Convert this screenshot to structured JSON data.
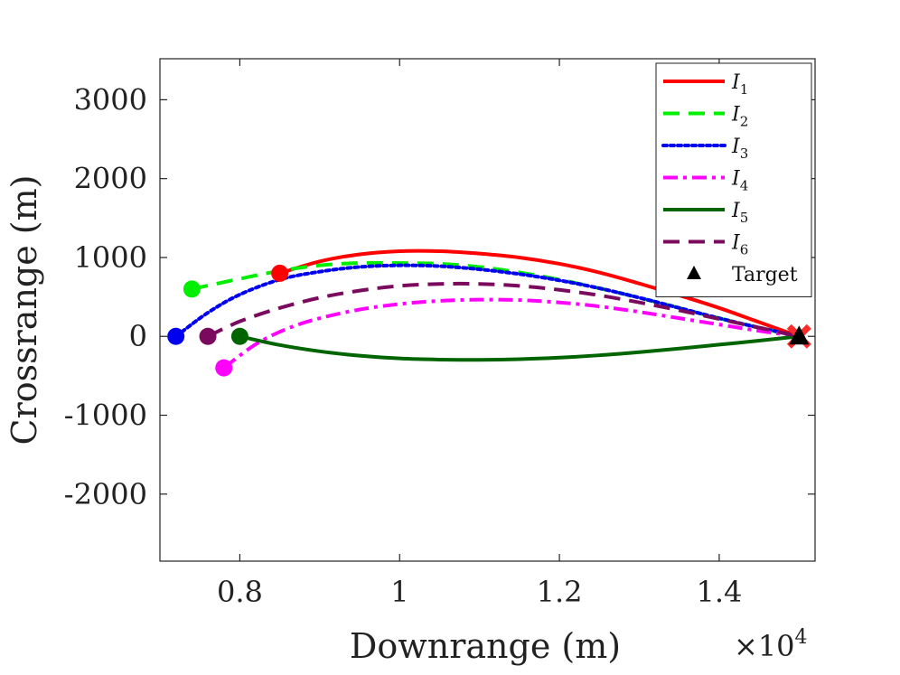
{
  "chart_data": {
    "type": "line",
    "title": "",
    "xlabel": "Downrange (m)",
    "ylabel": "Crossrange (m)",
    "x_exponent_label": "×10",
    "x_exponent_power": "4",
    "xlim": [
      0.7,
      1.52
    ],
    "ylim": [
      -2850,
      3520
    ],
    "x_scale_factor": 10000,
    "xticks": [
      0.8,
      1.0,
      1.2,
      1.4
    ],
    "xtick_labels": [
      "0.8",
      "1",
      "1.2",
      "1.4"
    ],
    "yticks": [
      3000,
      2000,
      1000,
      0,
      -1000,
      -2000
    ],
    "ytick_labels": [
      "3000",
      "2000",
      "1000",
      "0",
      "-1000",
      "-2000"
    ],
    "grid": false,
    "legend_position": "top-right",
    "series": [
      {
        "name": "I",
        "subscript": "1",
        "color": "#ff0000",
        "dash": "solid",
        "x": [
          8500,
          9000,
          9500,
          10000,
          10500,
          11000,
          11500,
          12000,
          12500,
          13000,
          13500,
          14000,
          14500,
          15000
        ],
        "y": [
          800,
          950,
          1040,
          1080,
          1080,
          1050,
          1000,
          920,
          810,
          670,
          520,
          360,
          180,
          0
        ]
      },
      {
        "name": "I",
        "subscript": "2",
        "color": "#00ee00",
        "dash": "dashed",
        "x": [
          7400,
          8000,
          8500,
          9000,
          9500,
          10000,
          10500,
          11000,
          11500,
          12000,
          12500,
          13000,
          13500,
          14000,
          14500,
          15000
        ],
        "y": [
          600,
          730,
          830,
          900,
          930,
          930,
          920,
          880,
          810,
          720,
          610,
          490,
          360,
          230,
          110,
          0
        ]
      },
      {
        "name": "I",
        "subscript": "3",
        "color": "#0000ee",
        "dash": "dotted",
        "x": [
          7200,
          7600,
          8000,
          8500,
          9000,
          9500,
          10000,
          10500,
          11000,
          11500,
          12000,
          12500,
          13000,
          13500,
          14000,
          14500,
          15000
        ],
        "y": [
          0,
          300,
          530,
          720,
          820,
          880,
          900,
          890,
          850,
          790,
          710,
          610,
          490,
          360,
          230,
          110,
          0
        ]
      },
      {
        "name": "I",
        "subscript": "4",
        "color": "#ff00ff",
        "dash": "dashdot",
        "x": [
          7800,
          8200,
          8600,
          9000,
          9500,
          10000,
          10500,
          11000,
          11500,
          12000,
          12500,
          13000,
          13500,
          14000,
          14500,
          15000
        ],
        "y": [
          -400,
          -100,
          100,
          230,
          340,
          410,
          450,
          465,
          460,
          430,
          380,
          310,
          230,
          150,
          70,
          0
        ]
      },
      {
        "name": "I",
        "subscript": "5",
        "color": "#006400",
        "dash": "solid",
        "x": [
          8000,
          8500,
          9000,
          9500,
          10000,
          10500,
          11000,
          11500,
          12000,
          12500,
          13000,
          13500,
          14000,
          14500,
          15000
        ],
        "y": [
          0,
          -110,
          -190,
          -245,
          -280,
          -295,
          -298,
          -290,
          -270,
          -240,
          -200,
          -155,
          -105,
          -55,
          0
        ]
      },
      {
        "name": "I",
        "subscript": "6",
        "color": "#7b0a5e",
        "dash": "dashed",
        "x": [
          7600,
          8000,
          8500,
          9000,
          9500,
          10000,
          10500,
          11000,
          11500,
          12000,
          12500,
          13000,
          13500,
          14000,
          14500,
          15000
        ],
        "y": [
          0,
          190,
          360,
          490,
          580,
          640,
          665,
          665,
          640,
          590,
          520,
          430,
          330,
          220,
          110,
          0
        ]
      }
    ],
    "target": {
      "name": "Target",
      "x": 15000,
      "y": 0
    }
  }
}
